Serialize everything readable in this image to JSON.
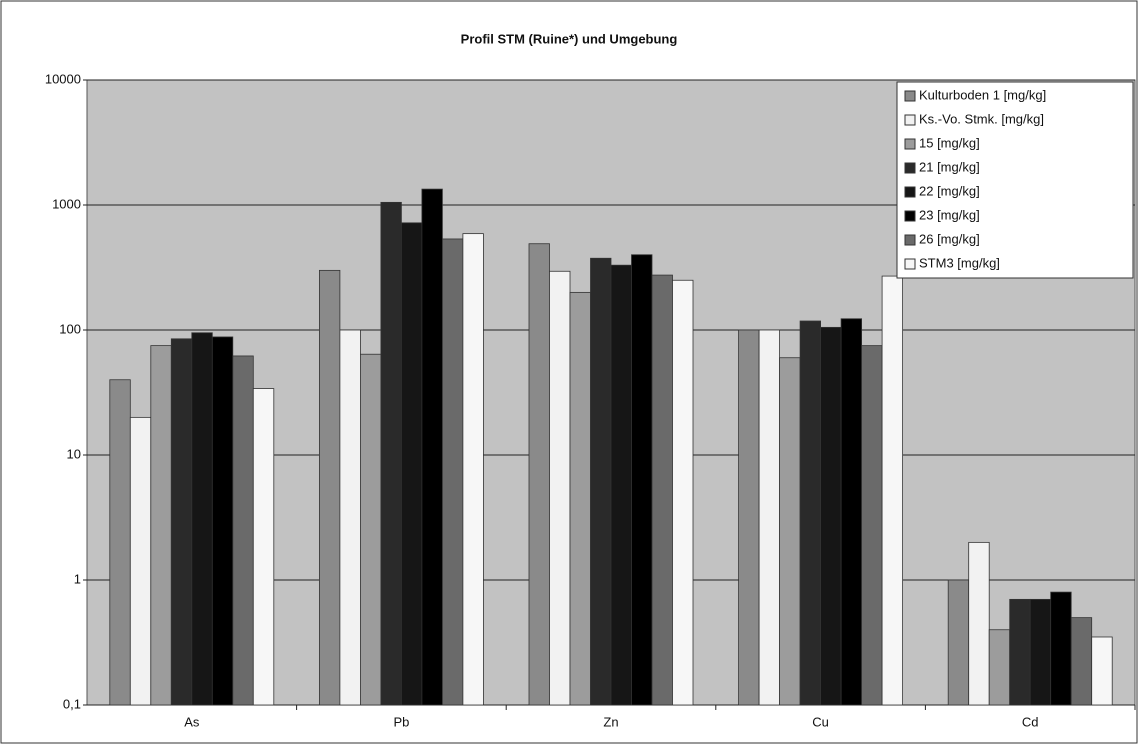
{
  "chart_data": {
    "type": "bar",
    "title": "Profil STM (Ruine*) und Umgebung",
    "categories": [
      "As",
      "Pb",
      "Zn",
      "Cu",
      "Cd"
    ],
    "series": [
      {
        "name": "Kulturboden 1 [mg/kg]",
        "color": "#8a8a8a",
        "values": [
          40,
          300,
          490,
          100,
          1
        ]
      },
      {
        "name": "Ks.-Vo. Stmk. [mg/kg]",
        "color": "#f2f2f2",
        "values": [
          20,
          100,
          295,
          100,
          2
        ]
      },
      {
        "name": "15 [mg/kg]",
        "color": "#9c9c9c",
        "values": [
          75,
          64,
          200,
          60,
          0.4
        ]
      },
      {
        "name": "21 [mg/kg]",
        "color": "#2a2a2a",
        "values": [
          85,
          1050,
          375,
          118,
          0.7
        ]
      },
      {
        "name": "22 [mg/kg]",
        "color": "#161616",
        "values": [
          95,
          720,
          330,
          105,
          0.7
        ]
      },
      {
        "name": "23 [mg/kg]",
        "color": "#000000",
        "values": [
          88,
          1340,
          400,
          123,
          0.8
        ]
      },
      {
        "name": "26 [mg/kg]",
        "color": "#6a6a6a",
        "values": [
          62,
          535,
          275,
          75,
          0.5
        ]
      },
      {
        "name": "STM3 [mg/kg]",
        "color": "#f7f7f7",
        "values": [
          34,
          590,
          250,
          270,
          0.35
        ]
      }
    ],
    "ylim": [
      0.1,
      10000
    ],
    "yticks": [
      {
        "value": 0.1,
        "label": "0,1"
      },
      1,
      10,
      100,
      1000,
      10000
    ],
    "log": true,
    "grid": true,
    "legend": "top-right"
  }
}
